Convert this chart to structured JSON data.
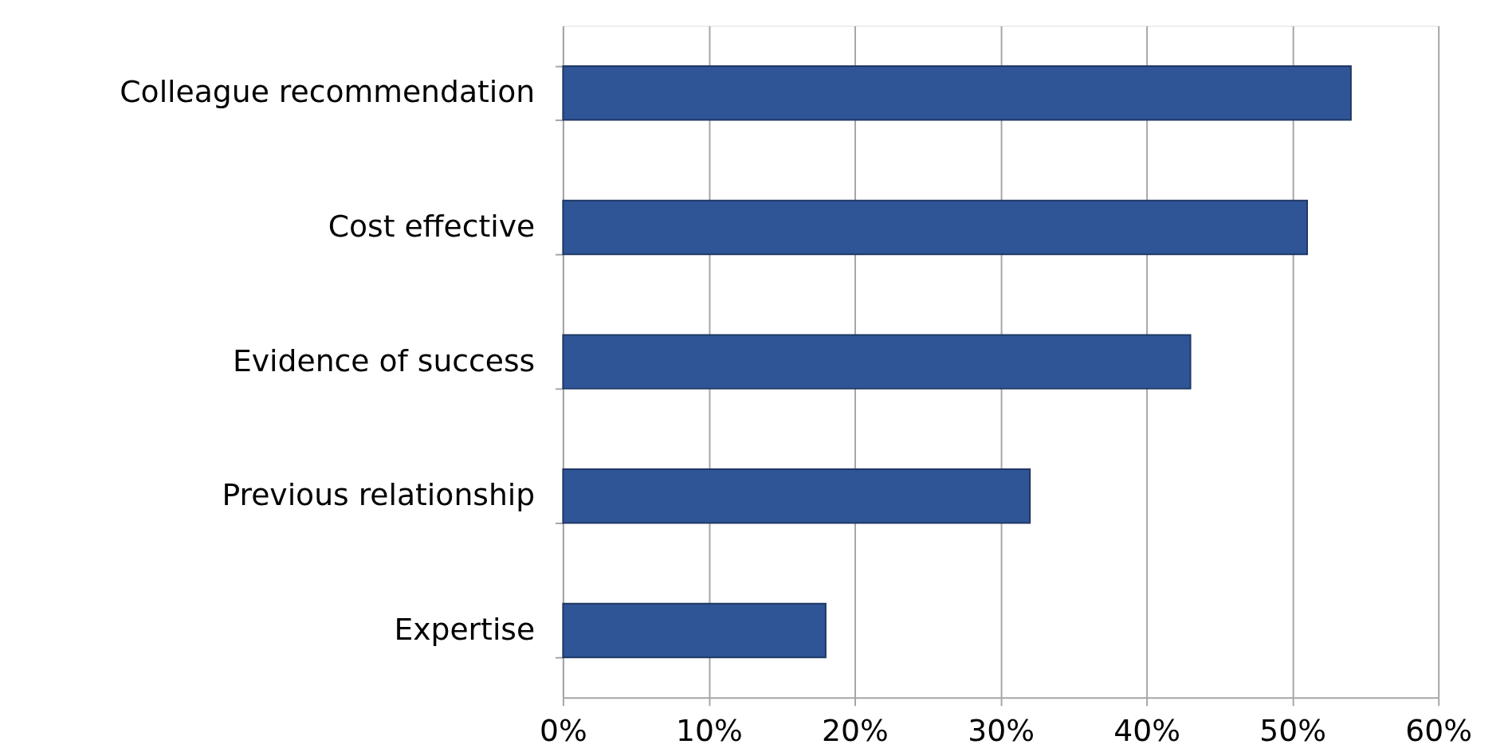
{
  "chart_data": {
    "type": "bar",
    "orientation": "horizontal",
    "categories": [
      "Colleague recommendation",
      "Cost effective",
      "Evidence of success",
      "Previous relationship",
      "Expertise"
    ],
    "values": [
      54,
      51,
      43,
      32,
      18
    ],
    "color": "#2f5597",
    "xlim": [
      0,
      60
    ],
    "xticks": [
      {
        "value": 0,
        "label": "0%"
      },
      {
        "value": 10,
        "label": "10%"
      },
      {
        "value": 20,
        "label": "20%"
      },
      {
        "value": 30,
        "label": "30%"
      },
      {
        "value": 40,
        "label": "40%"
      },
      {
        "value": 50,
        "label": "50%"
      },
      {
        "value": 60,
        "label": "60%"
      }
    ],
    "grid": "x"
  }
}
